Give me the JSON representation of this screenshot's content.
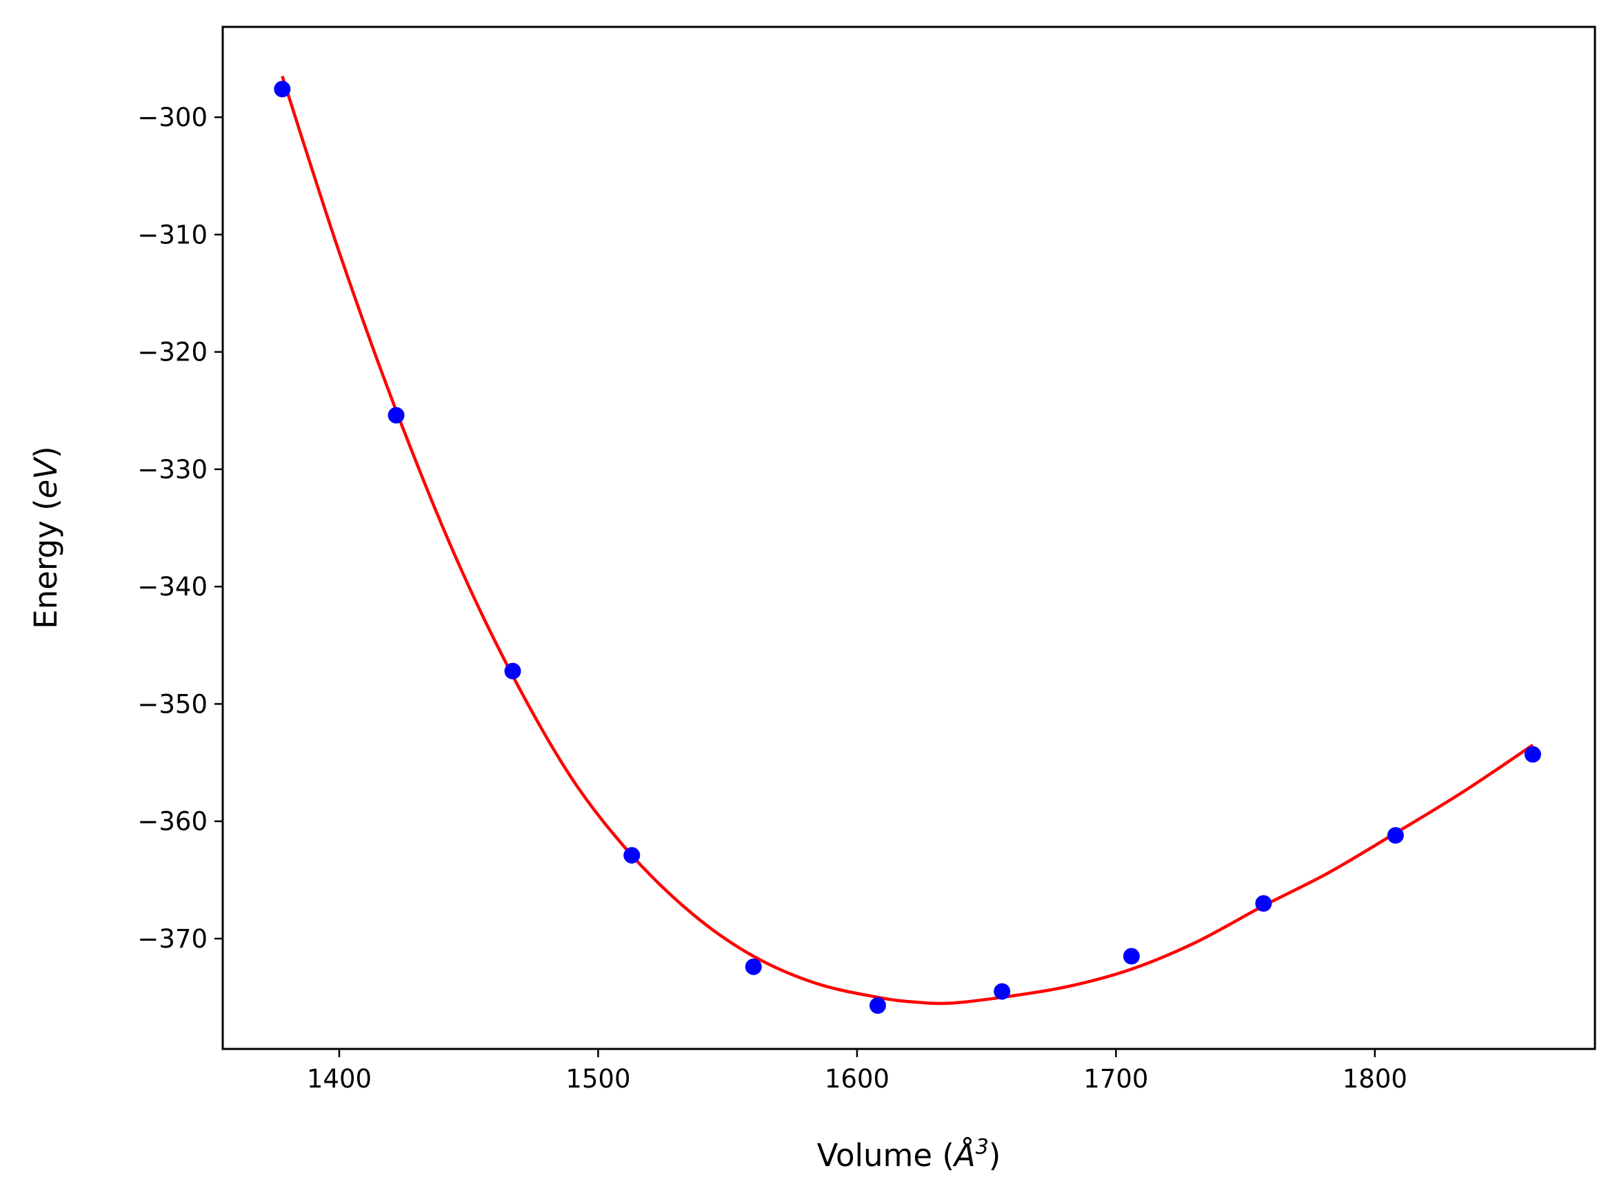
{
  "chart_data": {
    "type": "scatter",
    "xlabel_main": "Volume (",
    "xlabel_unit": "Å",
    "xlabel_exp": "3",
    "xlabel_close": ")",
    "ylabel_main": "Energy (",
    "ylabel_unit": "eV",
    "ylabel_close": ")",
    "xlim": [
      1355,
      1885
    ],
    "ylim": [
      -379.4,
      -292.3
    ],
    "xticks": [
      1400,
      1500,
      1600,
      1700,
      1800
    ],
    "xtick_labels": [
      "1400",
      "1500",
      "1600",
      "1700",
      "1800"
    ],
    "yticks": [
      -300,
      -310,
      -320,
      -330,
      -340,
      -350,
      -360,
      -370
    ],
    "ytick_labels": [
      "−300",
      "−310",
      "−320",
      "−330",
      "−340",
      "−350",
      "−360",
      "−370"
    ],
    "grid": false,
    "series": [
      {
        "kind": "points",
        "color": "#0000ff",
        "x": [
          1378,
          1422,
          1467,
          1513,
          1560,
          1608,
          1656,
          1706,
          1757,
          1808,
          1861
        ],
        "y": [
          -297.6,
          -325.4,
          -347.2,
          -362.9,
          -372.4,
          -375.7,
          -374.5,
          -371.5,
          -367.0,
          -361.2,
          -354.3
        ]
      },
      {
        "kind": "fit",
        "color": "#ff0000",
        "x": [
          1378,
          1400,
          1422,
          1445,
          1467,
          1490,
          1513,
          1537,
          1560,
          1584,
          1608,
          1622,
          1636,
          1656,
          1681,
          1706,
          1731,
          1757,
          1782,
          1808,
          1834,
          1861
        ],
        "y": [
          -296.5,
          -311.5,
          -325.0,
          -337.5,
          -347.6,
          -356.4,
          -362.9,
          -368.0,
          -371.5,
          -373.8,
          -375.0,
          -375.4,
          -375.5,
          -375.0,
          -374.1,
          -372.6,
          -370.3,
          -367.2,
          -364.4,
          -361.0,
          -357.5,
          -353.5
        ]
      }
    ]
  }
}
